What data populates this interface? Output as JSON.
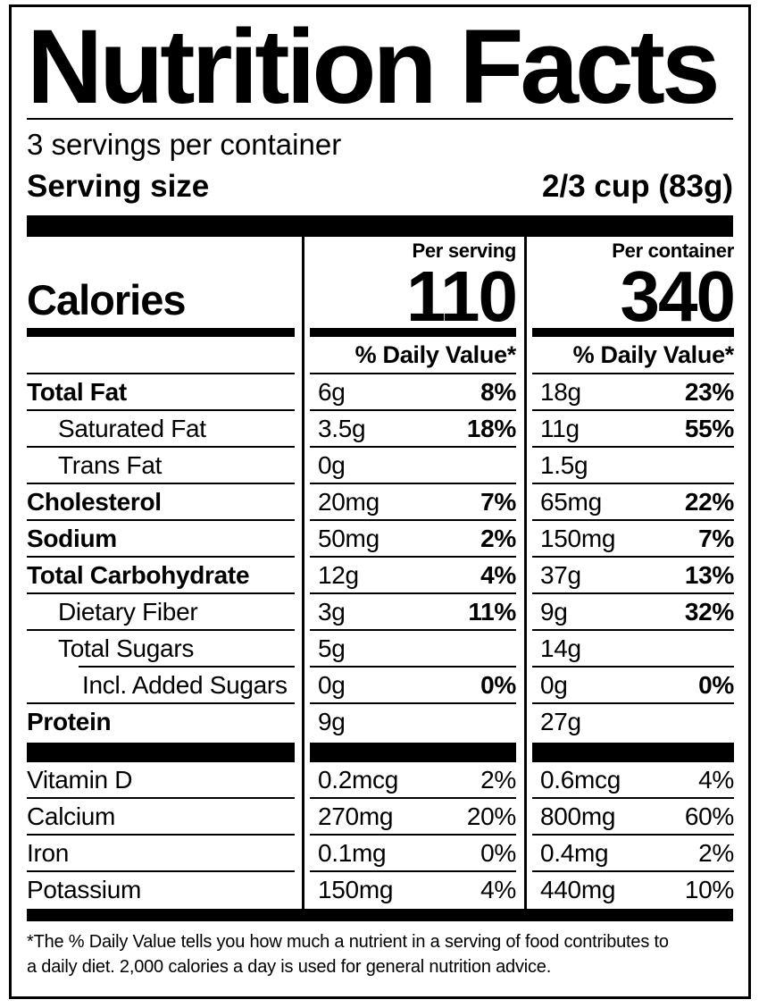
{
  "title": "Nutrition Facts",
  "servings_per_container": "3 servings per container",
  "serving_size": {
    "label": "Serving size",
    "value": "2/3 cup (83g)"
  },
  "calories": {
    "label": "Calories",
    "columns": [
      {
        "header": "Per serving",
        "value": "110"
      },
      {
        "header": "Per container",
        "value": "340"
      }
    ]
  },
  "daily_value_header": "% Daily Value*",
  "nutrients": [
    {
      "name": "Total Fat",
      "bold": true,
      "indent": 0,
      "per_serving": {
        "amount": "6g",
        "dv": "8%"
      },
      "per_container": {
        "amount": "18g",
        "dv": "23%"
      }
    },
    {
      "name": "Saturated Fat",
      "bold": false,
      "indent": 1,
      "per_serving": {
        "amount": "3.5g",
        "dv": "18%"
      },
      "per_container": {
        "amount": "11g",
        "dv": "55%"
      }
    },
    {
      "name": "Trans Fat",
      "bold": false,
      "indent": 1,
      "per_serving": {
        "amount": "0g",
        "dv": ""
      },
      "per_container": {
        "amount": "1.5g",
        "dv": ""
      }
    },
    {
      "name": "Cholesterol",
      "bold": true,
      "indent": 0,
      "per_serving": {
        "amount": "20mg",
        "dv": "7%"
      },
      "per_container": {
        "amount": "65mg",
        "dv": "22%"
      }
    },
    {
      "name": "Sodium",
      "bold": true,
      "indent": 0,
      "per_serving": {
        "amount": "50mg",
        "dv": "2%"
      },
      "per_container": {
        "amount": "150mg",
        "dv": "7%"
      }
    },
    {
      "name": "Total Carbohydrate",
      "bold": true,
      "indent": 0,
      "per_serving": {
        "amount": "12g",
        "dv": "4%"
      },
      "per_container": {
        "amount": "37g",
        "dv": "13%"
      }
    },
    {
      "name": "Dietary Fiber",
      "bold": false,
      "indent": 1,
      "per_serving": {
        "amount": "3g",
        "dv": "11%"
      },
      "per_container": {
        "amount": "9g",
        "dv": "32%"
      }
    },
    {
      "name": "Total Sugars",
      "bold": false,
      "indent": 1,
      "indented_line_below": true,
      "per_serving": {
        "amount": "5g",
        "dv": ""
      },
      "per_container": {
        "amount": "14g",
        "dv": ""
      }
    },
    {
      "name": "Incl. Added Sugars",
      "bold": false,
      "indent": 2,
      "per_serving": {
        "amount": "0g",
        "dv": "0%"
      },
      "per_container": {
        "amount": "0g",
        "dv": "0%"
      }
    },
    {
      "name": "Protein",
      "bold": true,
      "indent": 0,
      "per_serving": {
        "amount": "9g",
        "dv": ""
      },
      "per_container": {
        "amount": "27g",
        "dv": ""
      }
    }
  ],
  "vitamins": [
    {
      "name": "Vitamin D",
      "per_serving": {
        "amount": "0.2mcg",
        "dv": "2%"
      },
      "per_container": {
        "amount": "0.6mcg",
        "dv": "4%"
      }
    },
    {
      "name": "Calcium",
      "per_serving": {
        "amount": "270mg",
        "dv": "20%"
      },
      "per_container": {
        "amount": "800mg",
        "dv": "60%"
      }
    },
    {
      "name": "Iron",
      "per_serving": {
        "amount": "0.1mg",
        "dv": "0%"
      },
      "per_container": {
        "amount": "0.4mg",
        "dv": "2%"
      }
    },
    {
      "name": "Potassium",
      "per_serving": {
        "amount": "150mg",
        "dv": "4%"
      },
      "per_container": {
        "amount": "440mg",
        "dv": "10%"
      }
    }
  ],
  "footnote_lines": [
    "*The % Daily Value tells you how much a nutrient in a serving of food contributes to",
    "a daily diet. 2,000 calories a day is used for general nutrition advice."
  ],
  "colors": {
    "ink": "#000000",
    "background": "#ffffff"
  }
}
